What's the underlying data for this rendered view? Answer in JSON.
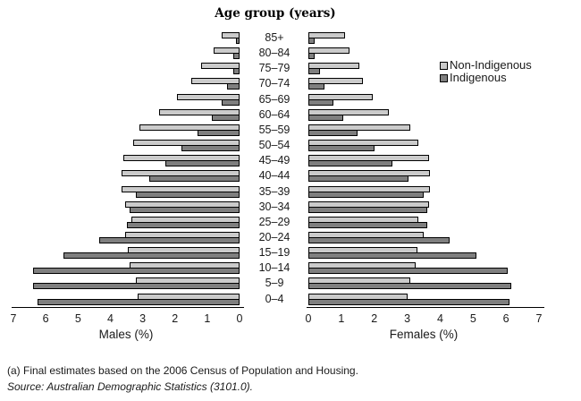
{
  "title": "Age group (years)",
  "legend": {
    "non_indigenous": "Non-Indigenous",
    "indigenous": "Indigenous"
  },
  "colors": {
    "non_indigenous": "#cbcbcb",
    "indigenous": "#7f7f7f",
    "outline": "#000000"
  },
  "axes": {
    "male": {
      "label": "Males (%)",
      "ticks": [
        7,
        6,
        5,
        4,
        3,
        2,
        1,
        0
      ],
      "max": 7
    },
    "female": {
      "label": "Females (%)",
      "ticks": [
        0,
        1,
        2,
        3,
        4,
        5,
        6,
        7
      ],
      "max": 7
    }
  },
  "footnotes": [
    "(a) Final estimates based on the 2006 Census of Population and Housing.",
    "Source: Australian Demographic Statistics (3101.0)."
  ],
  "chart_data": {
    "type": "bar",
    "subtype": "population-pyramid",
    "title": "Age group (years)",
    "categories": [
      "85+",
      "80–84",
      "75–79",
      "70–74",
      "65–69",
      "60–64",
      "55–59",
      "50–54",
      "45–49",
      "40–44",
      "35–39",
      "30–34",
      "25–29",
      "20–24",
      "15–19",
      "10–14",
      "5–9",
      "0–4"
    ],
    "xlabel_male": "Males (%)",
    "xlabel_female": "Females (%)",
    "xlim": [
      0,
      7
    ],
    "legend_position": "upper-right",
    "grid": false,
    "series": [
      {
        "name": "Males Non-Indigenous",
        "side": "male",
        "group": "non_indigenous",
        "values": [
          0.55,
          0.8,
          1.2,
          1.5,
          1.95,
          2.5,
          3.1,
          3.3,
          3.6,
          3.65,
          3.65,
          3.55,
          3.35,
          3.55,
          3.45,
          3.4,
          3.2,
          3.15
        ]
      },
      {
        "name": "Males Indigenous",
        "side": "male",
        "group": "indigenous",
        "values": [
          0.1,
          0.2,
          0.2,
          0.4,
          0.55,
          0.85,
          1.3,
          1.8,
          2.3,
          2.8,
          3.2,
          3.4,
          3.5,
          4.35,
          5.45,
          6.4,
          6.4,
          6.25
        ]
      },
      {
        "name": "Females Non-Indigenous",
        "side": "female",
        "group": "non_indigenous",
        "values": [
          1.1,
          1.25,
          1.55,
          1.65,
          1.95,
          2.45,
          3.1,
          3.35,
          3.65,
          3.7,
          3.7,
          3.65,
          3.35,
          3.5,
          3.3,
          3.25,
          3.1,
          3.0
        ]
      },
      {
        "name": "Females Indigenous",
        "side": "female",
        "group": "indigenous",
        "values": [
          0.2,
          0.2,
          0.35,
          0.5,
          0.75,
          1.05,
          1.5,
          2.0,
          2.55,
          3.05,
          3.5,
          3.6,
          3.6,
          4.3,
          5.1,
          6.05,
          6.15,
          6.1
        ]
      }
    ]
  }
}
